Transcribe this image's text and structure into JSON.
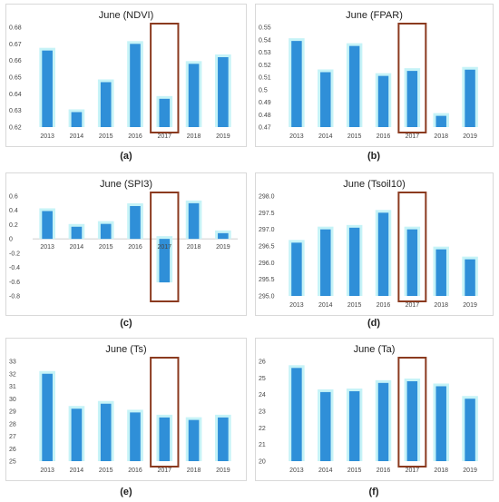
{
  "highlight_category": "2017",
  "colors": {
    "bar": "#2f8fd8",
    "highlight": "#8b3a1f"
  },
  "chart_data": [
    {
      "id": "a",
      "caption": "(a)",
      "type": "bar",
      "title": "June (NDVI)",
      "categories": [
        "2013",
        "2014",
        "2015",
        "2016",
        "2017",
        "2018",
        "2019"
      ],
      "values": [
        0.666,
        0.629,
        0.647,
        0.67,
        0.637,
        0.658,
        0.662
      ],
      "ylim": [
        0.62,
        0.68
      ],
      "yticks": [
        "0.62",
        "0.63",
        "0.64",
        "0.65",
        "0.66",
        "0.67",
        "0.68"
      ]
    },
    {
      "id": "b",
      "caption": "(b)",
      "type": "bar",
      "title": "June (FPAR)",
      "categories": [
        "2013",
        "2014",
        "2015",
        "2016",
        "2017",
        "2018",
        "2019"
      ],
      "values": [
        0.539,
        0.514,
        0.535,
        0.511,
        0.515,
        0.479,
        0.516
      ],
      "ylim": [
        0.47,
        0.55
      ],
      "yticks": [
        "0.47",
        "0.48",
        "0.49",
        "0.5",
        "0.51",
        "0.52",
        "0.53",
        "0.54",
        "0.55"
      ]
    },
    {
      "id": "c",
      "caption": "(c)",
      "type": "bar",
      "title": "June (SPI3)",
      "categories": [
        "2013",
        "2014",
        "2015",
        "2016",
        "2017",
        "2018",
        "2019"
      ],
      "values": [
        0.39,
        0.17,
        0.21,
        0.46,
        -0.61,
        0.5,
        0.08
      ],
      "ylim": [
        -0.8,
        0.6
      ],
      "zero_axis": true,
      "yticks": [
        "-0.8",
        "-0.6",
        "-0.4",
        "-0.2",
        "0",
        "0.2",
        "0.4",
        "0.6"
      ]
    },
    {
      "id": "d",
      "caption": "(d)",
      "type": "bar",
      "title": "June (Tsoil10)",
      "categories": [
        "2013",
        "2014",
        "2015",
        "2016",
        "2017",
        "2018",
        "2019"
      ],
      "values": [
        296.6,
        297.0,
        297.05,
        297.5,
        297.0,
        296.4,
        296.1
      ],
      "ylim": [
        295.0,
        298.0
      ],
      "yticks": [
        "295.0",
        "295.5",
        "296.0",
        "296.5",
        "297.0",
        "297.5",
        "298.0"
      ]
    },
    {
      "id": "e",
      "caption": "(e)",
      "type": "bar",
      "title": "June (Ts)",
      "categories": [
        "2013",
        "2014",
        "2015",
        "2016",
        "2017",
        "2018",
        "2019"
      ],
      "values": [
        32.0,
        29.2,
        29.6,
        28.9,
        28.5,
        28.3,
        28.5
      ],
      "ylim": [
        25,
        33
      ],
      "yticks": [
        "25",
        "26",
        "27",
        "28",
        "29",
        "30",
        "31",
        "32",
        "33"
      ]
    },
    {
      "id": "f",
      "caption": "(f)",
      "type": "bar",
      "title": "June (Ta)",
      "categories": [
        "2013",
        "2014",
        "2015",
        "2016",
        "2017",
        "2018",
        "2019"
      ],
      "values": [
        25.6,
        24.15,
        24.2,
        24.7,
        24.8,
        24.5,
        23.75
      ],
      "ylim": [
        20,
        26
      ],
      "yticks": [
        "20",
        "21",
        "22",
        "23",
        "24",
        "25",
        "26"
      ]
    }
  ]
}
